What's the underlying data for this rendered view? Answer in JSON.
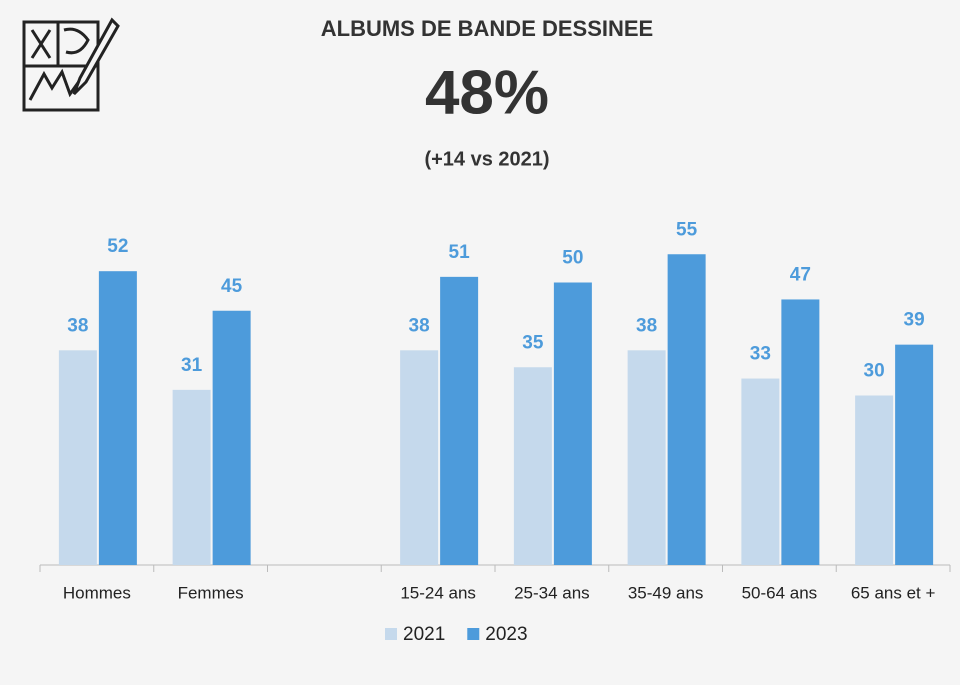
{
  "chart_data": {
    "type": "bar",
    "title": "ALBUMS DE BANDE DESSINEE",
    "headline": "48%",
    "subtitle": "(+14 vs 2021)",
    "categories": [
      "Hommes",
      "Femmes",
      null,
      "15-24 ans",
      "25-34 ans",
      "35-49 ans",
      "50-64 ans",
      "65 ans et +"
    ],
    "series": [
      {
        "name": "2021",
        "color": "#c5d9ec",
        "values": [
          38,
          31,
          null,
          38,
          35,
          38,
          33,
          30
        ]
      },
      {
        "name": "2023",
        "color": "#4d9bdb",
        "values": [
          52,
          45,
          null,
          51,
          50,
          55,
          47,
          39
        ]
      }
    ],
    "label_color": "#4d9bdb",
    "ylim": [
      0,
      60
    ],
    "legend": "bottom"
  }
}
